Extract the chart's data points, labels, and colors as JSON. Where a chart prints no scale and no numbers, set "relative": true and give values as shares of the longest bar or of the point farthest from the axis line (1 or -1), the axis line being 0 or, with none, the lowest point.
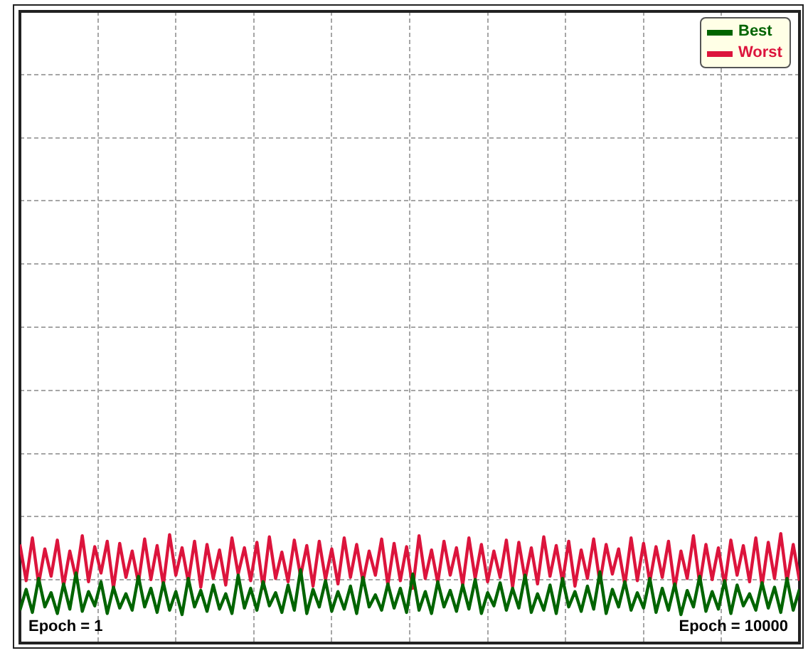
{
  "chart_data": {
    "type": "line",
    "relative": true,
    "categories": [
      null,
      null,
      null,
      null,
      null,
      null,
      null,
      null,
      null,
      null,
      null,
      null,
      null,
      null,
      null,
      null,
      null,
      null,
      null,
      null,
      null,
      null,
      null,
      null,
      null,
      null,
      null,
      null,
      null,
      null,
      null,
      null,
      null,
      null,
      null,
      null,
      null,
      null,
      null,
      null,
      null,
      null,
      null,
      null,
      null,
      null,
      null,
      null,
      null,
      null,
      null,
      null,
      null,
      null,
      null,
      null,
      null,
      null,
      null,
      null,
      null,
      null,
      null,
      null,
      null,
      null,
      null,
      null,
      null,
      null,
      null,
      null,
      null,
      null,
      null,
      null,
      null,
      null,
      null,
      null,
      null,
      null,
      null,
      null,
      null,
      null,
      null,
      null,
      null,
      null,
      null,
      null,
      null,
      null,
      null,
      null,
      null,
      null,
      null,
      null,
      null,
      null,
      null,
      null,
      null,
      null,
      null,
      null,
      null,
      null,
      null,
      null,
      null,
      null,
      null,
      null,
      null,
      null,
      null,
      null,
      null,
      null,
      null,
      null,
      null,
      null
    ],
    "series": [
      {
        "name": "Best",
        "color": "#006400",
        "values": [
          0.3,
          0.49,
          0.28,
          0.59,
          0.33,
          0.46,
          0.27,
          0.54,
          0.31,
          0.64,
          0.29,
          0.47,
          0.34,
          0.56,
          0.27,
          0.51,
          0.32,
          0.45,
          0.3,
          0.61,
          0.33,
          0.5,
          0.28,
          0.55,
          0.3,
          0.47,
          0.26,
          0.59,
          0.33,
          0.48,
          0.29,
          0.53,
          0.31,
          0.45,
          0.27,
          0.62,
          0.32,
          0.5,
          0.3,
          0.56,
          0.34,
          0.46,
          0.28,
          0.53,
          0.3,
          0.67,
          0.27,
          0.49,
          0.33,
          0.57,
          0.29,
          0.47,
          0.31,
          0.52,
          0.27,
          0.6,
          0.33,
          0.44,
          0.3,
          0.54,
          0.32,
          0.5,
          0.28,
          0.63,
          0.3,
          0.47,
          0.27,
          0.56,
          0.33,
          0.48,
          0.29,
          0.53,
          0.31,
          0.58,
          0.27,
          0.46,
          0.34,
          0.55,
          0.3,
          0.5,
          0.32,
          0.62,
          0.28,
          0.45,
          0.3,
          0.53,
          0.27,
          0.59,
          0.33,
          0.47,
          0.29,
          0.52,
          0.31,
          0.65,
          0.27,
          0.49,
          0.33,
          0.56,
          0.3,
          0.46,
          0.32,
          0.59,
          0.28,
          0.5,
          0.3,
          0.54,
          0.26,
          0.48,
          0.33,
          0.61,
          0.29,
          0.47,
          0.31,
          0.57,
          0.27,
          0.53,
          0.34,
          0.45,
          0.3,
          0.55,
          0.32,
          0.51,
          0.28,
          0.59,
          0.3,
          0.49
        ]
      },
      {
        "name": "Worst",
        "color": "#dc143c",
        "values": [
          0.9,
          0.57,
          0.96,
          0.54,
          0.86,
          0.61,
          0.94,
          0.52,
          0.84,
          0.59,
          0.98,
          0.56,
          0.88,
          0.64,
          0.93,
          0.5,
          0.91,
          0.6,
          0.84,
          0.55,
          0.95,
          0.58,
          0.89,
          0.53,
          0.99,
          0.62,
          0.87,
          0.56,
          0.93,
          0.51,
          0.9,
          0.59,
          0.85,
          0.53,
          0.96,
          0.63,
          0.87,
          0.57,
          0.92,
          0.5,
          0.97,
          0.59,
          0.83,
          0.56,
          0.94,
          0.61,
          0.89,
          0.52,
          0.93,
          0.58,
          0.86,
          0.54,
          0.96,
          0.6,
          0.9,
          0.56,
          0.84,
          0.62,
          0.95,
          0.53,
          0.91,
          0.57,
          0.88,
          0.5,
          0.98,
          0.59,
          0.85,
          0.55,
          0.93,
          0.62,
          0.87,
          0.53,
          0.96,
          0.59,
          0.9,
          0.56,
          0.84,
          0.6,
          0.94,
          0.51,
          0.92,
          0.58,
          0.87,
          0.54,
          0.97,
          0.61,
          0.89,
          0.56,
          0.93,
          0.52,
          0.85,
          0.59,
          0.95,
          0.55,
          0.9,
          0.63,
          0.86,
          0.53,
          0.96,
          0.57,
          0.91,
          0.56,
          0.88,
          0.6,
          0.93,
          0.5,
          0.84,
          0.59,
          0.98,
          0.54,
          0.9,
          0.58,
          0.87,
          0.53,
          0.94,
          0.62,
          0.89,
          0.56,
          0.96,
          0.52,
          0.92,
          0.59,
          1.0,
          0.56,
          0.9,
          0.57
        ]
      }
    ],
    "annotations": [
      "Epoch = 1",
      "Epoch = 10000"
    ],
    "grid": true,
    "legend": "top right",
    "marker": "none",
    "line_style": "solid"
  }
}
